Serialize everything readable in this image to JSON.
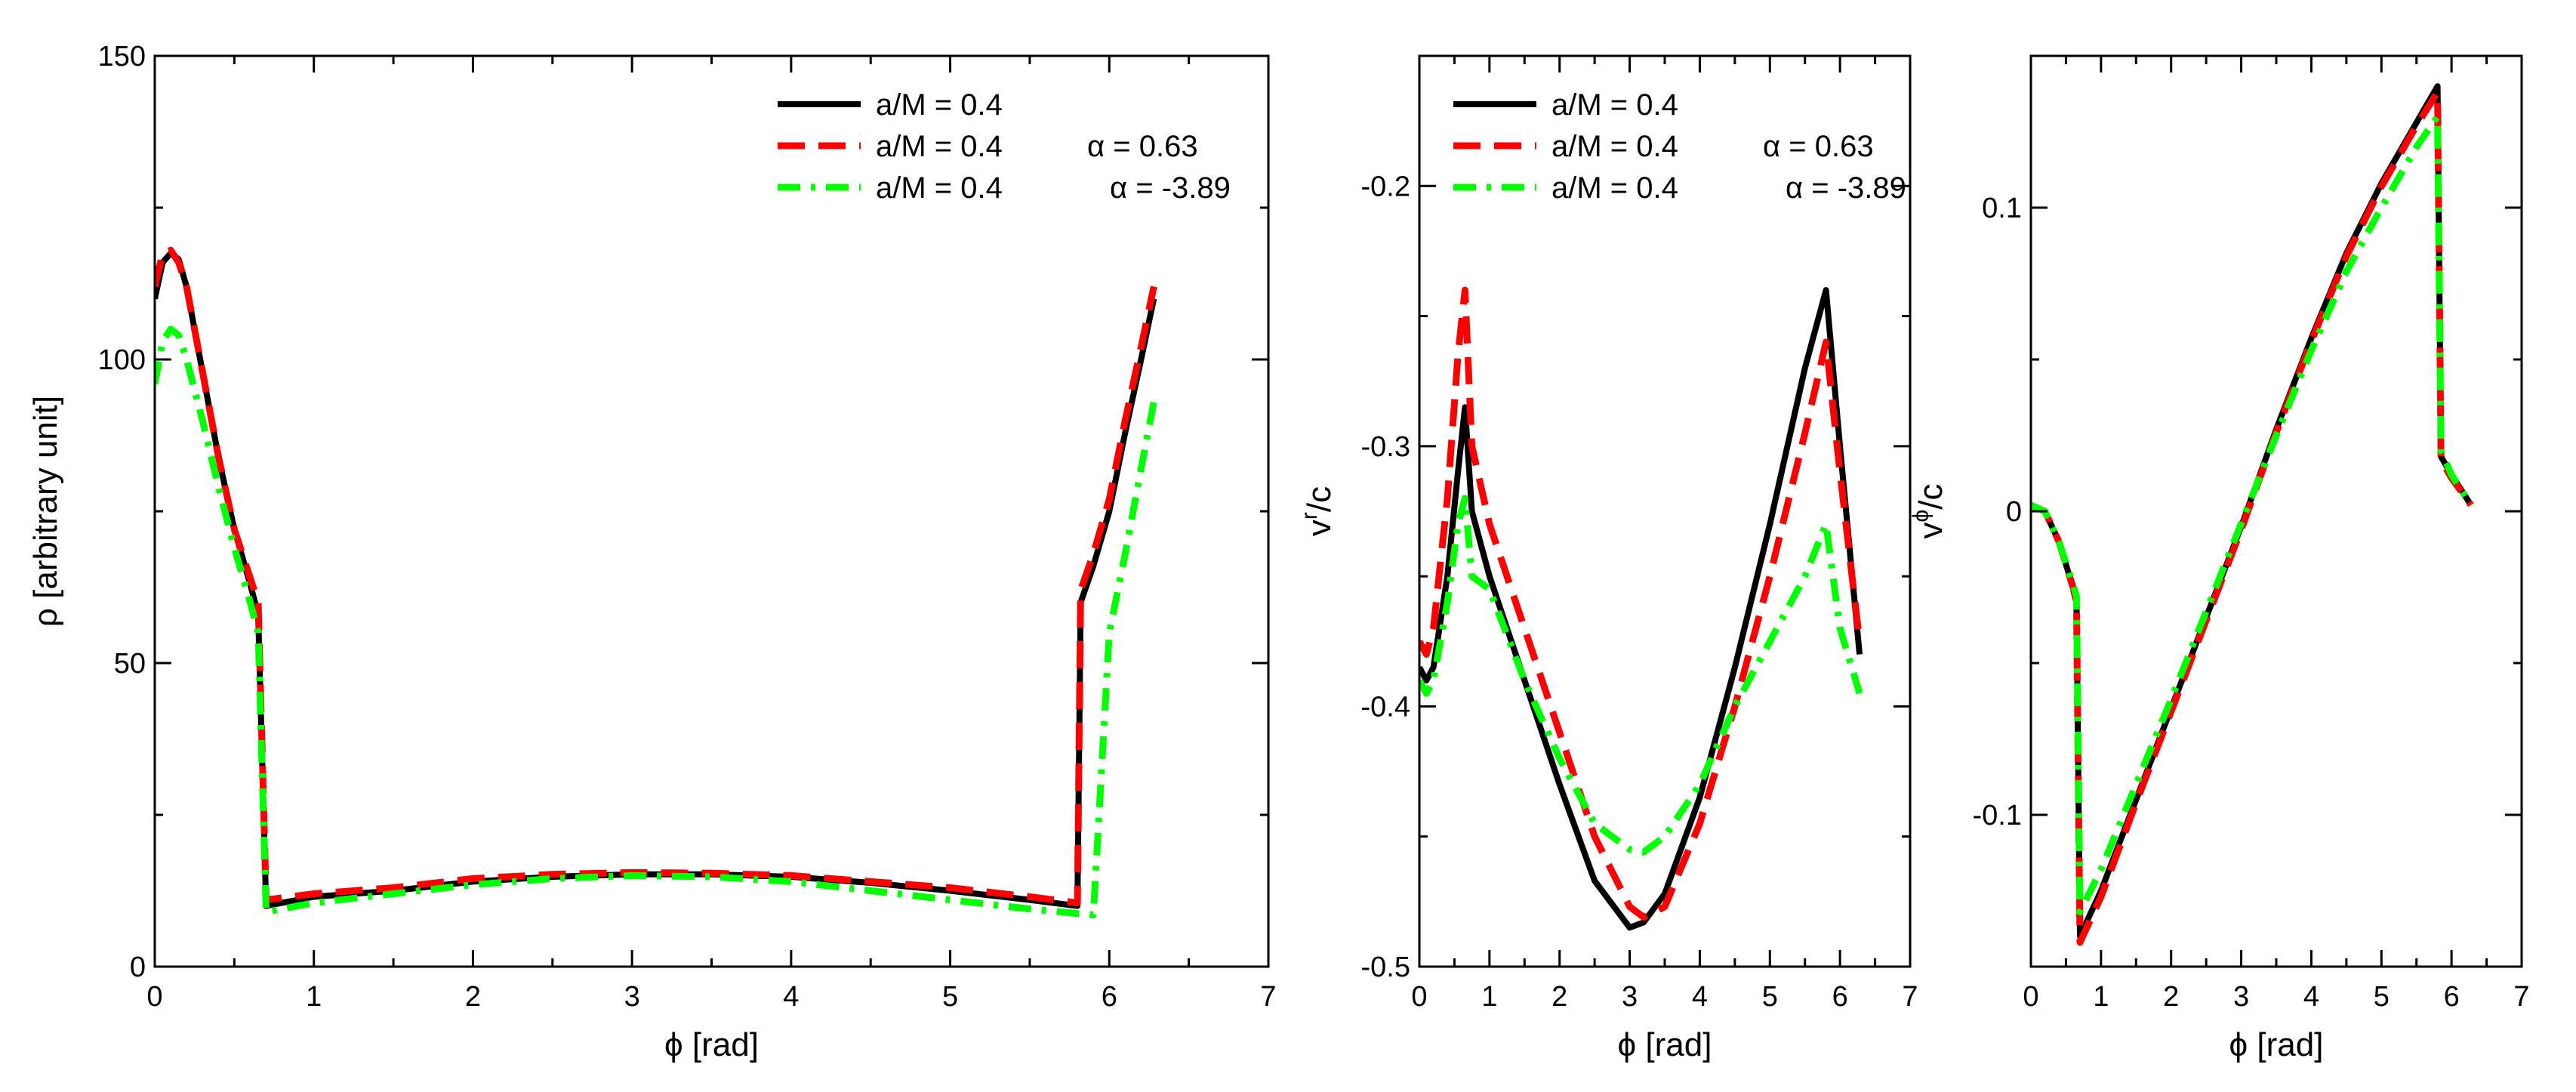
{
  "colors": {
    "black": "#000000",
    "red": "#ff0000",
    "green": "#00ff00"
  },
  "chart_data": [
    {
      "type": "line",
      "panel": "density",
      "title": "",
      "xlabel": "ϕ [rad]",
      "ylabel": "ρ [arbitrary unit]",
      "ylabel_sup": "",
      "ylabel_rest": "",
      "xlim": [
        0,
        7
      ],
      "ylim": [
        0,
        150
      ],
      "xticks": [
        0,
        1,
        2,
        3,
        4,
        5,
        6,
        7
      ],
      "yticks": [
        0,
        50,
        100,
        150
      ],
      "xtick_labels": [
        "0",
        "1",
        "2",
        "3",
        "4",
        "5",
        "6",
        "7"
      ],
      "ytick_labels": [
        "0",
        "50",
        "100",
        "150"
      ],
      "legend_position": "top-right",
      "series": [
        {
          "name": "a/M = 0.4",
          "legend_alpha": "",
          "color": "#000000",
          "style": "solid",
          "x": [
            0,
            0.05,
            0.1,
            0.15,
            0.2,
            0.3,
            0.4,
            0.5,
            0.6,
            0.65,
            0.7,
            1.0,
            1.5,
            2.0,
            2.5,
            3.0,
            3.5,
            4.0,
            4.5,
            5.0,
            5.5,
            5.8,
            5.82,
            5.9,
            6.0,
            6.1,
            6.2,
            6.28
          ],
          "values": [
            110,
            116,
            117.5,
            116.5,
            112,
            98,
            84,
            72,
            63,
            58,
            10,
            11.5,
            12.5,
            14,
            14.8,
            15.2,
            15.2,
            14.8,
            13.8,
            12.5,
            11,
            10,
            60,
            66,
            75,
            88,
            100,
            110
          ]
        },
        {
          "name": "a/M = 0.4",
          "legend_alpha": "α = 0.63",
          "color": "#ff0000",
          "style": "dashed",
          "x": [
            0,
            0.05,
            0.1,
            0.15,
            0.2,
            0.3,
            0.4,
            0.5,
            0.6,
            0.65,
            0.7,
            1.0,
            1.5,
            2.0,
            2.5,
            3.0,
            3.5,
            4.0,
            4.5,
            5.0,
            5.5,
            5.8,
            5.82,
            5.9,
            6.0,
            6.1,
            6.2,
            6.28
          ],
          "values": [
            112,
            117.5,
            118,
            116,
            112,
            98,
            84,
            72,
            64,
            60,
            11,
            12,
            13,
            14.5,
            15.2,
            15.5,
            15.4,
            15,
            14,
            13,
            11.5,
            10.5,
            62,
            68,
            77,
            90,
            102,
            112
          ]
        },
        {
          "name": "a/M = 0.4",
          "legend_alpha": "α = -3.89",
          "color": "#00ff00",
          "style": "dashdot",
          "x": [
            0,
            0.05,
            0.1,
            0.15,
            0.2,
            0.3,
            0.4,
            0.5,
            0.6,
            0.65,
            0.7,
            1.0,
            1.5,
            2.0,
            2.5,
            3.0,
            3.5,
            4.0,
            4.5,
            5.0,
            5.5,
            5.9,
            6.0,
            6.1,
            6.2,
            6.28
          ],
          "values": [
            96,
            103,
            105,
            104,
            100,
            90,
            79,
            69,
            60,
            55,
            9,
            10.5,
            12,
            13.5,
            14.5,
            15,
            14.8,
            14,
            12.5,
            11,
            9.5,
            8.5,
            55,
            68,
            82,
            93
          ]
        }
      ]
    },
    {
      "type": "line",
      "panel": "radial-velocity",
      "title": "",
      "xlabel": "ϕ [rad]",
      "ylabel": "",
      "ylabel_sup": "r",
      "ylabel_rest": "/c",
      "xlim": [
        0,
        7
      ],
      "ylim": [
        -0.5,
        -0.15
      ],
      "xticks": [
        0,
        1,
        2,
        3,
        4,
        5,
        6,
        7
      ],
      "yticks": [
        -0.5,
        -0.4,
        -0.3,
        -0.2
      ],
      "xtick_labels": [
        "0",
        "1",
        "2",
        "3",
        "4",
        "5",
        "6",
        "7"
      ],
      "ytick_labels": [
        "-0.5",
        "-0.4",
        "-0.3",
        "-0.2"
      ],
      "legend_position": "top-left",
      "series": [
        {
          "name": "a/M = 0.4",
          "legend_alpha": "",
          "color": "#000000",
          "style": "solid",
          "x": [
            0,
            0.1,
            0.2,
            0.4,
            0.55,
            0.65,
            0.75,
            1.0,
            1.5,
            2.0,
            2.5,
            3.0,
            3.2,
            3.5,
            4.0,
            4.5,
            5.0,
            5.5,
            5.8,
            6.0,
            6.28
          ],
          "values": [
            -0.385,
            -0.39,
            -0.385,
            -0.35,
            -0.31,
            -0.285,
            -0.325,
            -0.35,
            -0.39,
            -0.43,
            -0.467,
            -0.485,
            -0.483,
            -0.472,
            -0.435,
            -0.385,
            -0.33,
            -0.27,
            -0.24,
            -0.3,
            -0.38
          ]
        },
        {
          "name": "a/M = 0.4",
          "legend_alpha": "α = 0.63",
          "color": "#ff0000",
          "style": "dashed",
          "x": [
            0,
            0.1,
            0.2,
            0.4,
            0.55,
            0.65,
            0.75,
            1.0,
            1.5,
            2.0,
            2.5,
            3.0,
            3.2,
            3.5,
            4.0,
            4.5,
            5.0,
            5.5,
            5.8,
            6.0,
            6.28
          ],
          "values": [
            -0.375,
            -0.38,
            -0.37,
            -0.32,
            -0.265,
            -0.24,
            -0.3,
            -0.33,
            -0.37,
            -0.41,
            -0.45,
            -0.477,
            -0.481,
            -0.477,
            -0.445,
            -0.4,
            -0.35,
            -0.295,
            -0.26,
            -0.31,
            -0.375
          ]
        },
        {
          "name": "a/M = 0.4",
          "legend_alpha": "α = -3.89",
          "color": "#00ff00",
          "style": "dashdot",
          "x": [
            0,
            0.1,
            0.2,
            0.4,
            0.55,
            0.65,
            0.75,
            1.0,
            1.5,
            2.0,
            2.5,
            3.0,
            3.2,
            3.5,
            4.0,
            4.5,
            5.0,
            5.5,
            5.8,
            6.0,
            6.28
          ],
          "values": [
            -0.39,
            -0.395,
            -0.39,
            -0.36,
            -0.33,
            -0.32,
            -0.35,
            -0.355,
            -0.39,
            -0.42,
            -0.445,
            -0.455,
            -0.456,
            -0.45,
            -0.43,
            -0.4,
            -0.375,
            -0.35,
            -0.33,
            -0.37,
            -0.395
          ]
        }
      ]
    },
    {
      "type": "line",
      "panel": "azimuthal-velocity",
      "title": "",
      "xlabel": "ϕ [rad]",
      "ylabel": "",
      "ylabel_sup": "ϕ",
      "ylabel_rest": "/c",
      "xlim": [
        0,
        7
      ],
      "ylim": [
        -0.15,
        0.15
      ],
      "xticks": [
        0,
        1,
        2,
        3,
        4,
        5,
        6,
        7
      ],
      "yticks": [
        -0.1,
        0,
        0.1
      ],
      "xtick_labels": [
        "0",
        "1",
        "2",
        "3",
        "4",
        "5",
        "6",
        "7"
      ],
      "ytick_labels": [
        "-0.1",
        "0",
        "0.1"
      ],
      "legend_position": "none",
      "series": [
        {
          "name": "a/M = 0.4",
          "legend_alpha": "",
          "color": "#000000",
          "style": "solid",
          "x": [
            0,
            0.2,
            0.4,
            0.6,
            0.65,
            0.7,
            1.0,
            1.5,
            2.0,
            2.5,
            3.0,
            3.5,
            4.0,
            4.5,
            5.0,
            5.5,
            5.8,
            5.85,
            6.0,
            6.28
          ],
          "values": [
            0.002,
            0,
            -0.01,
            -0.025,
            -0.03,
            -0.14,
            -0.125,
            -0.095,
            -0.065,
            -0.035,
            -0.005,
            0.027,
            0.057,
            0.085,
            0.108,
            0.128,
            0.14,
            0.018,
            0.012,
            0.002
          ]
        },
        {
          "name": "a/M = 0.4",
          "legend_alpha": "α = 0.63",
          "color": "#ff0000",
          "style": "dashed",
          "x": [
            0,
            0.2,
            0.4,
            0.6,
            0.65,
            0.7,
            1.0,
            1.5,
            2.0,
            2.5,
            3.0,
            3.5,
            4.0,
            4.5,
            5.0,
            5.5,
            5.8,
            5.85,
            6.0,
            6.28
          ],
          "values": [
            0.002,
            0,
            -0.01,
            -0.025,
            -0.03,
            -0.142,
            -0.127,
            -0.096,
            -0.066,
            -0.036,
            -0.006,
            0.026,
            0.056,
            0.084,
            0.107,
            0.127,
            0.138,
            0.017,
            0.011,
            0.002
          ]
        },
        {
          "name": "a/M = 0.4",
          "legend_alpha": "α = -3.89",
          "color": "#00ff00",
          "style": "dashdot",
          "x": [
            0,
            0.2,
            0.4,
            0.6,
            0.65,
            0.7,
            1.0,
            1.5,
            2.0,
            2.5,
            3.0,
            3.5,
            4.0,
            4.5,
            5.0,
            5.5,
            5.8,
            5.85,
            6.0,
            6.28
          ],
          "values": [
            0.002,
            0,
            -0.01,
            -0.024,
            -0.028,
            -0.132,
            -0.118,
            -0.09,
            -0.062,
            -0.033,
            -0.004,
            0.025,
            0.053,
            0.079,
            0.1,
            0.12,
            0.13,
            0.02,
            0.012,
            0.002
          ]
        }
      ]
    }
  ]
}
